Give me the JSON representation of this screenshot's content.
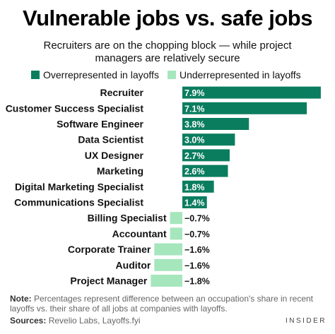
{
  "title": "Vulnerable jobs vs. safe jobs",
  "subtitle": "Recruiters are on the chopping block — while project managers are relatively secure",
  "legend": [
    {
      "label": "Overrepresented in layoffs",
      "color": "#0b7d5f"
    },
    {
      "label": "Underrepresented in layoffs",
      "color": "#a6e6bd"
    }
  ],
  "chart_data": {
    "type": "bar",
    "orientation": "horizontal",
    "categories": [
      "Recruiter",
      "Customer Success Specialist",
      "Software Engineer",
      "Data Scientist",
      "UX Designer",
      "Marketing",
      "Digital Marketing Specialist",
      "Communications Specialist",
      "Billing Specialist",
      "Accountant",
      "Corporate Trainer",
      "Auditor",
      "Project Manager"
    ],
    "values": [
      7.9,
      7.1,
      3.8,
      3.0,
      2.7,
      2.6,
      1.8,
      1.4,
      -0.7,
      -0.7,
      -1.6,
      -1.6,
      -1.8
    ],
    "value_labels": [
      "7.9%",
      "7.1%",
      "3.8%",
      "3.0%",
      "2.7%",
      "2.6%",
      "1.8%",
      "1.4%",
      "−0.7%",
      "−0.7%",
      "−1.6%",
      "−1.6%",
      "−1.8%"
    ],
    "xlim": [
      -1.8,
      7.9
    ],
    "positive_color": "#0b7d5f",
    "negative_color": "#a6e6bd"
  },
  "note_label": "Note:",
  "note_text": "Percentages represent difference between an occupation's share in recent layoffs vs. their share of all jobs at companies with layoffs.",
  "sources_label": "Sources:",
  "sources_text": "Revelio Labs, Layoffs.fyi",
  "brand": "INSIDER"
}
